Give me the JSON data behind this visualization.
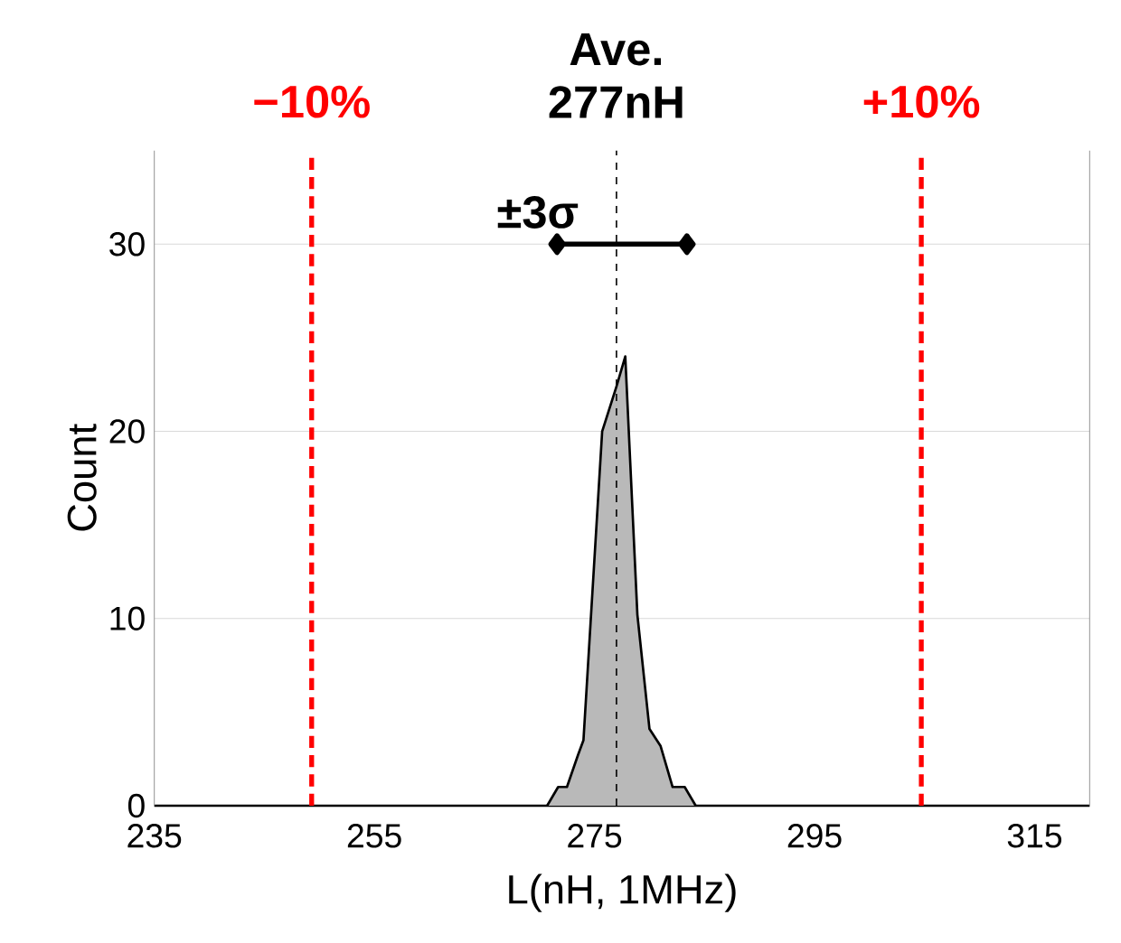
{
  "chart_data": {
    "type": "area",
    "xlabel": "L(nH, 1MHz)",
    "ylabel": "Count",
    "xlim": [
      235,
      320
    ],
    "ylim": [
      0,
      35
    ],
    "xticks": [
      235,
      255,
      275,
      295,
      315
    ],
    "yticks": [
      0,
      10,
      20,
      30
    ],
    "grid": "y",
    "series": [
      {
        "color": "#000000",
        "x": [
          270.7,
          271.7,
          272.5,
          273.5,
          274,
          275.7,
          277,
          277.8,
          278.9,
          280,
          281,
          282.1,
          283.2,
          284.2
        ],
        "values": [
          0,
          1,
          1,
          2.7,
          3.5,
          20,
          22.4,
          24,
          10.2,
          4.1,
          3.2,
          1,
          1,
          0
        ]
      },
      {
        "type": "line",
        "color": "#000000",
        "marker": "diamond",
        "x": [
          271.6,
          283.4
        ],
        "values": [
          30,
          30
        ]
      }
    ],
    "ref_lines": [
      {
        "axis": "x",
        "value": 249.3,
        "color": "#ff0000",
        "line_style": "dashed"
      },
      {
        "axis": "x",
        "value": 277,
        "label": "Ave. 277nH",
        "color": "#000000",
        "line_style": "dashed"
      },
      {
        "axis": "x",
        "value": 304.7,
        "color": "#ff0000",
        "line_style": "dashed"
      }
    ],
    "annotations": [
      "±3σ",
      {
        "text": "−10%",
        "x": 249.3,
        "y": 35
      },
      {
        "text": "+10%",
        "x": 304.7,
        "y": 35
      }
    ]
  }
}
